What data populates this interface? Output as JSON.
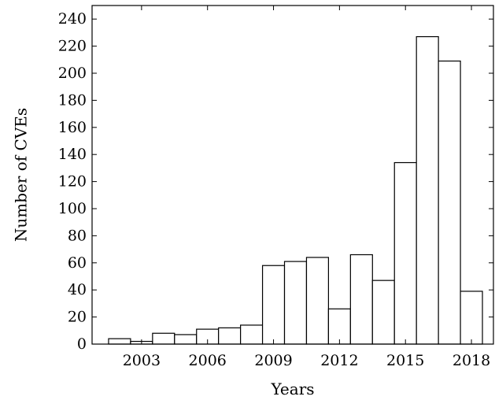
{
  "chart_data": {
    "type": "bar",
    "title": "",
    "xlabel": "Years",
    "ylabel": "Number of CVEs",
    "x": [
      2002,
      2003,
      2004,
      2005,
      2006,
      2007,
      2008,
      2009,
      2010,
      2011,
      2012,
      2013,
      2014,
      2015,
      2016,
      2017,
      2018
    ],
    "values": [
      4,
      2,
      8,
      7,
      11,
      12,
      14,
      58,
      61,
      64,
      26,
      66,
      47,
      134,
      227,
      209,
      39
    ],
    "ylim": [
      0,
      250
    ],
    "xlim": [
      2000.75,
      2019
    ],
    "yticks": [
      0,
      20,
      40,
      60,
      80,
      100,
      120,
      140,
      160,
      180,
      200,
      220,
      240
    ],
    "xticks": [
      2003,
      2006,
      2009,
      2012,
      2015,
      2018
    ],
    "grid": false,
    "bar_fill": "#ffffff",
    "bar_stroke": "#000000"
  }
}
